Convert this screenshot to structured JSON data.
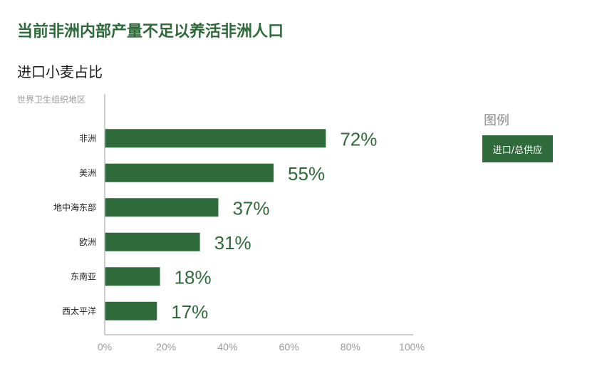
{
  "header": {
    "title": "当前非洲内部产量不足以养活非洲人口",
    "subtitle": "进口小麦占比",
    "category_header": "世界卫生组织地区"
  },
  "legend": {
    "title": "图例",
    "items": [
      {
        "label": "进口/总供应",
        "color": "#2f6a3b"
      }
    ]
  },
  "chart_data": {
    "type": "bar",
    "orientation": "horizontal",
    "title": "当前非洲内部产量不足以养活非洲人口",
    "subtitle": "进口小麦占比",
    "categories": [
      "非洲",
      "美洲",
      "地中海东部",
      "欧洲",
      "东南亚",
      "西太平洋"
    ],
    "series": [
      {
        "name": "进口/总供应",
        "values": [
          72,
          55,
          37,
          31,
          18,
          17
        ]
      }
    ],
    "value_labels": [
      "72%",
      "55%",
      "37%",
      "31%",
      "18%",
      "17%"
    ],
    "xlim": [
      0,
      100
    ],
    "x_ticks": [
      "0%",
      "20%",
      "40%",
      "60%",
      "80%",
      "100%"
    ],
    "grid": false,
    "legend_position": "right",
    "bar_color": "#2f6a3b",
    "label_color": "#2f6a3b",
    "axis_color": "#bdbdbd",
    "tick_color": "#9a9a9a"
  }
}
